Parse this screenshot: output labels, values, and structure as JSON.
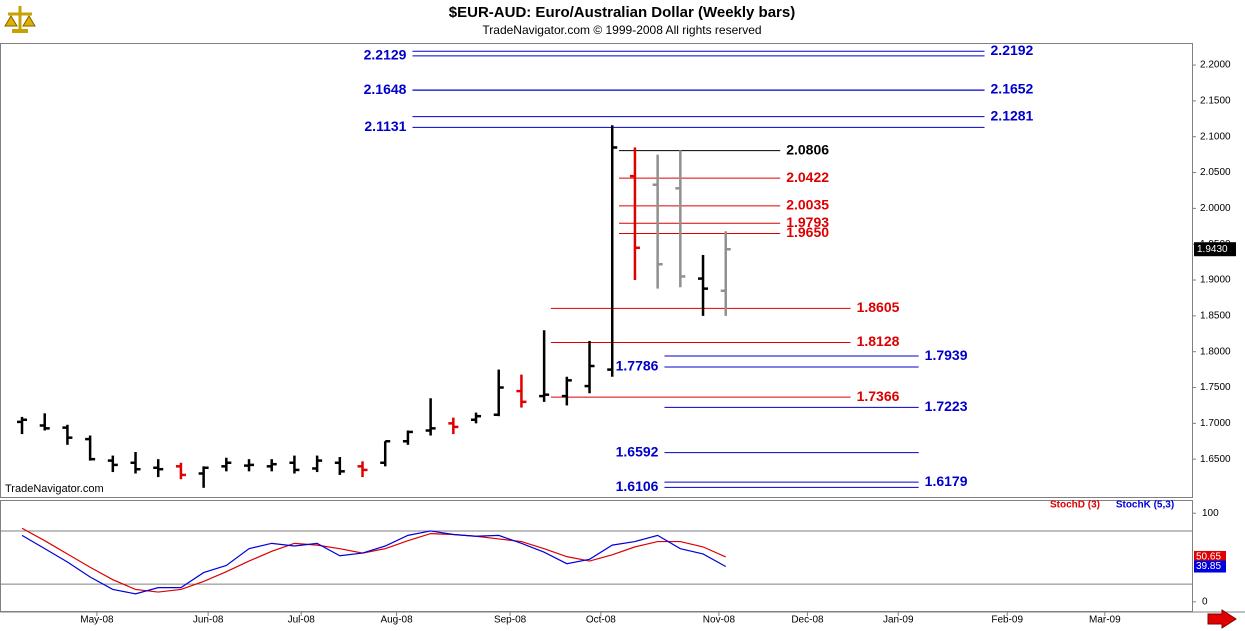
{
  "chart_data": [
    {
      "type": "ohlc",
      "title": "$EUR-AUD:  Euro/Australian Dollar  (Weekly bars)",
      "subtitle": "TradeNavigator.com © 1999-2008 All rights reserved",
      "watermark": "TradeNavigator.com",
      "x": [
        0,
        1,
        2,
        3,
        4,
        5,
        6,
        7,
        8,
        9,
        10,
        11,
        12,
        13,
        14,
        15,
        16,
        17,
        18,
        19,
        20,
        21,
        22,
        23,
        24,
        25,
        26,
        27,
        28,
        29,
        30,
        31
      ],
      "open": [
        1.702,
        1.697,
        1.694,
        1.678,
        1.648,
        1.645,
        1.638,
        1.64,
        1.63,
        1.64,
        1.641,
        1.64,
        1.645,
        1.637,
        1.645,
        1.64,
        1.645,
        1.675,
        1.69,
        1.7,
        1.705,
        1.712,
        1.745,
        1.738,
        1.738,
        1.752,
        1.775,
        2.045,
        2.033,
        2.028,
        1.902,
        1.885
      ],
      "high": [
        1.709,
        1.714,
        1.698,
        1.683,
        1.655,
        1.66,
        1.65,
        1.645,
        1.64,
        1.652,
        1.65,
        1.65,
        1.655,
        1.655,
        1.653,
        1.647,
        1.675,
        1.69,
        1.735,
        1.708,
        1.715,
        1.775,
        1.768,
        1.83,
        1.765,
        1.815,
        2.116,
        2.085,
        2.075,
        2.081,
        1.935,
        1.968
      ],
      "low": [
        1.685,
        1.69,
        1.67,
        1.648,
        1.632,
        1.63,
        1.625,
        1.622,
        1.61,
        1.633,
        1.633,
        1.633,
        1.63,
        1.632,
        1.628,
        1.625,
        1.64,
        1.67,
        1.683,
        1.685,
        1.7,
        1.71,
        1.722,
        1.73,
        1.725,
        1.742,
        1.765,
        1.9,
        1.888,
        1.89,
        1.85,
        1.85
      ],
      "close": [
        1.705,
        1.693,
        1.68,
        1.65,
        1.642,
        1.636,
        1.636,
        1.628,
        1.638,
        1.645,
        1.642,
        1.643,
        1.635,
        1.648,
        1.633,
        1.635,
        1.675,
        1.688,
        1.693,
        1.695,
        1.71,
        1.75,
        1.73,
        1.74,
        1.76,
        1.78,
        2.085,
        1.945,
        1.922,
        1.905,
        1.888,
        1.943
      ],
      "colors": [
        "#000000",
        "#000000",
        "#000000",
        "#000000",
        "#000000",
        "#000000",
        "#000000",
        "#e00000",
        "#000000",
        "#000000",
        "#000000",
        "#000000",
        "#000000",
        "#000000",
        "#000000",
        "#e00000",
        "#000000",
        "#000000",
        "#000000",
        "#e00000",
        "#000000",
        "#000000",
        "#e00000",
        "#000000",
        "#000000",
        "#000000",
        "#000000",
        "#e00000",
        "#909090",
        "#909090",
        "#000000",
        "#909090"
      ],
      "xlim": [
        -0.97,
        51.54
      ],
      "xticks": [
        {
          "value": 3.3,
          "label": "May-08"
        },
        {
          "value": 8.2,
          "label": "Jun-08"
        },
        {
          "value": 12.3,
          "label": "Jul-08"
        },
        {
          "value": 16.5,
          "label": "Aug-08"
        },
        {
          "value": 21.5,
          "label": "Sep-08"
        },
        {
          "value": 25.5,
          "label": "Oct-08"
        },
        {
          "value": 30.7,
          "label": "Nov-08"
        },
        {
          "value": 34.6,
          "label": "Dec-08"
        },
        {
          "value": 38.6,
          "label": "Jan-09"
        },
        {
          "value": 43.4,
          "label": "Feb-09"
        },
        {
          "value": 47.7,
          "label": "Mar-09"
        }
      ],
      "ylim": [
        1.5972,
        2.2294
      ],
      "yticks": [
        {
          "value": 1.65,
          "label": "1.6500"
        },
        {
          "value": 1.7,
          "label": "1.7000"
        },
        {
          "value": 1.75,
          "label": "1.7500"
        },
        {
          "value": 1.8,
          "label": "1.8000"
        },
        {
          "value": 1.85,
          "label": "1.8500"
        },
        {
          "value": 1.9,
          "label": "1.9000"
        },
        {
          "value": 1.95,
          "label": "1.9500"
        },
        {
          "value": 2.0,
          "label": "2.0000"
        },
        {
          "value": 2.05,
          "label": "2.0500"
        },
        {
          "value": 2.1,
          "label": "2.1000"
        },
        {
          "value": 2.15,
          "label": "2.1500"
        },
        {
          "value": 2.2,
          "label": "2.2000"
        }
      ],
      "last_price": {
        "value": 1.943,
        "label": "1.9430"
      },
      "levels": [
        {
          "value": 2.2192,
          "color": "#0000cc",
          "x_start": 17.2,
          "x_end": 42.4,
          "label_side": "right"
        },
        {
          "value": 2.2129,
          "color": "#0000cc",
          "x_start": 17.2,
          "x_end": 42.4,
          "label_side": "left"
        },
        {
          "value": 2.1652,
          "color": "#0000cc",
          "x_start": 17.2,
          "x_end": 42.4,
          "label_side": "right"
        },
        {
          "value": 2.1648,
          "color": "#0000cc",
          "x_start": 17.2,
          "x_end": 42.4,
          "label_side": "left"
        },
        {
          "value": 2.1281,
          "color": "#0000cc",
          "x_start": 17.2,
          "x_end": 42.4,
          "label_side": "right"
        },
        {
          "value": 2.1131,
          "color": "#0000cc",
          "x_start": 17.2,
          "x_end": 42.4,
          "label_side": "left"
        },
        {
          "value": 2.0806,
          "color": "#000000",
          "x_start": 26.3,
          "x_end": 33.4,
          "label_side": "right"
        },
        {
          "value": 2.0422,
          "color": "#dd0000",
          "x_start": 26.3,
          "x_end": 33.4,
          "label_side": "right"
        },
        {
          "value": 2.0035,
          "color": "#dd0000",
          "x_start": 26.3,
          "x_end": 33.4,
          "label_side": "right"
        },
        {
          "value": 1.9793,
          "color": "#dd0000",
          "x_start": 26.3,
          "x_end": 33.4,
          "label_side": "right"
        },
        {
          "value": 1.965,
          "label": "1.9650",
          "color": "#dd0000",
          "x_start": 26.3,
          "x_end": 33.4,
          "label_side": "right"
        },
        {
          "value": 1.8605,
          "color": "#dd0000",
          "x_start": 23.3,
          "x_end": 36.5,
          "label_side": "right"
        },
        {
          "value": 1.8128,
          "color": "#dd0000",
          "x_start": 23.3,
          "x_end": 36.5,
          "label_side": "right"
        },
        {
          "value": 1.7939,
          "color": "#0000cc",
          "x_start": 28.3,
          "x_end": 39.5,
          "label_side": "right"
        },
        {
          "value": 1.7786,
          "color": "#0000cc",
          "x_start": 28.3,
          "x_end": 39.5,
          "label_side": "left"
        },
        {
          "value": 1.7366,
          "color": "#dd0000",
          "x_start": 23.3,
          "x_end": 36.5,
          "label_side": "right"
        },
        {
          "value": 1.7223,
          "color": "#0000cc",
          "x_start": 28.3,
          "x_end": 39.5,
          "label_side": "right"
        },
        {
          "value": 1.6592,
          "color": "#0000cc",
          "x_start": 28.3,
          "x_end": 39.5,
          "label_side": "left"
        },
        {
          "value": 1.6179,
          "color": "#0000cc",
          "x_start": 28.3,
          "x_end": 39.5,
          "label_side": "right"
        },
        {
          "value": 1.6106,
          "color": "#0000cc",
          "x_start": 28.3,
          "x_end": 39.5,
          "label_side": "left"
        }
      ]
    },
    {
      "type": "line",
      "ylim": [
        -11.5,
        113.8
      ],
      "yticks": [
        0,
        100
      ],
      "reference_lines": [
        80,
        20
      ],
      "series": [
        {
          "name": "StochD (3)",
          "color": "#dd0000",
          "values": [
            83,
            69,
            54,
            39,
            25,
            14,
            11,
            14,
            23,
            34,
            46,
            57,
            66,
            64,
            60,
            55,
            60,
            69,
            77,
            76,
            74,
            71,
            68,
            60,
            51,
            46,
            53,
            62,
            68,
            68,
            62,
            50.65
          ]
        },
        {
          "name": "StochK (5,3)",
          "color": "#0000dd",
          "values": [
            75,
            60,
            45,
            28,
            14,
            9,
            16,
            16,
            33,
            41,
            60,
            66,
            63,
            66,
            52,
            55,
            63,
            75,
            80,
            76,
            74,
            75,
            66,
            56,
            43,
            48,
            64,
            68,
            75,
            60,
            54,
            39.85
          ]
        }
      ]
    }
  ]
}
